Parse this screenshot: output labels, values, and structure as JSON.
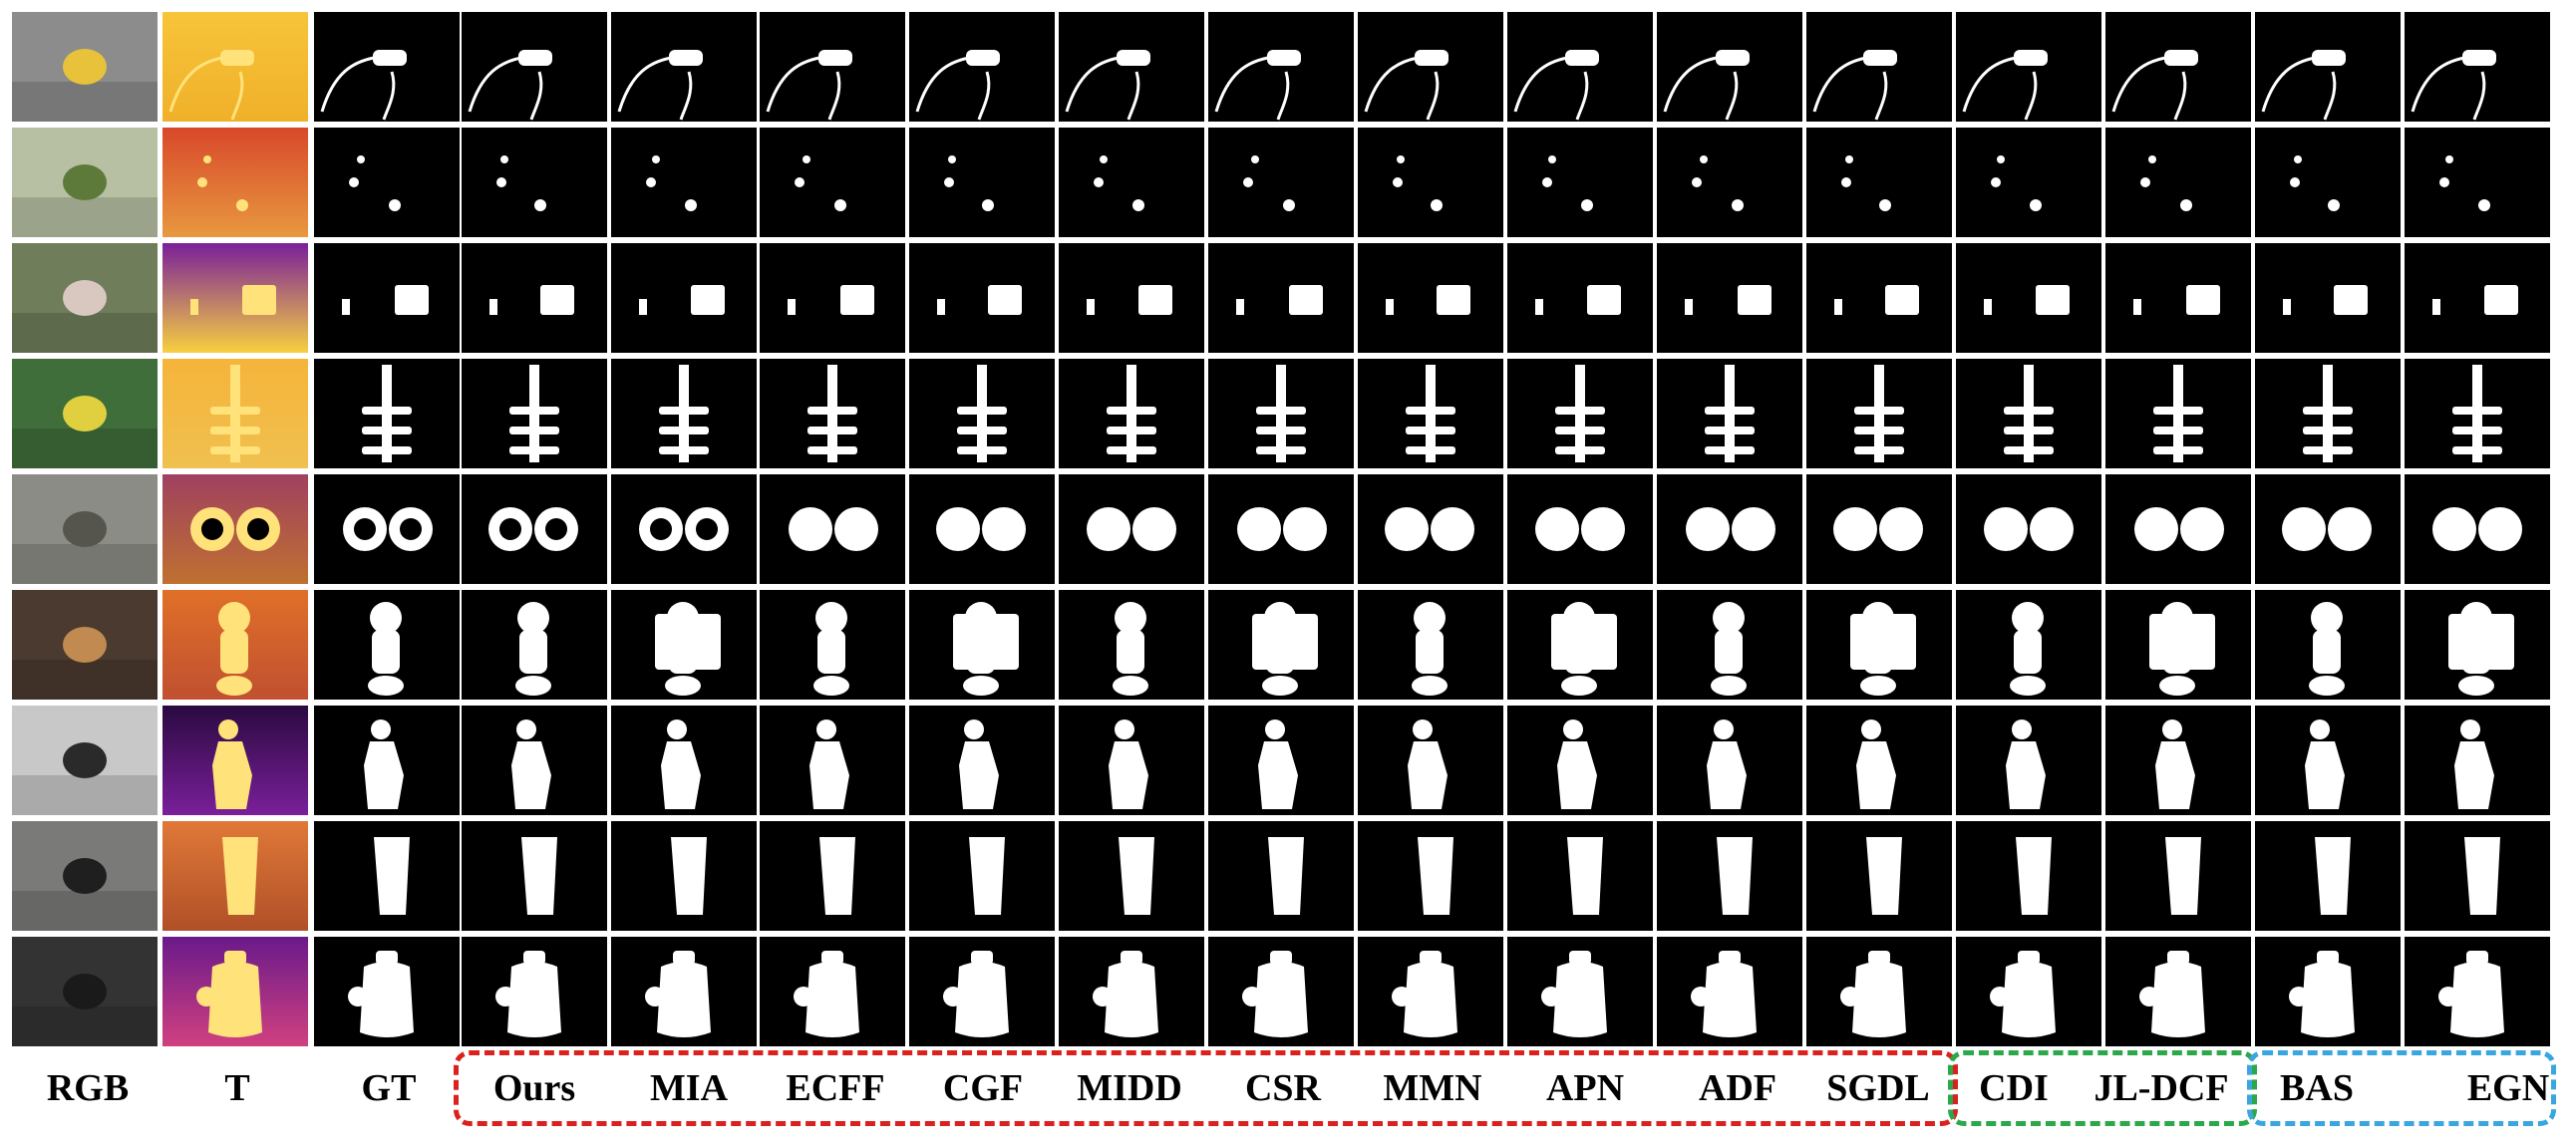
{
  "columns": [
    "RGB",
    "T",
    "GT",
    "Ours",
    "MIA",
    "ECFF",
    "CGF",
    "MIDD",
    "CSR",
    "MMN",
    "APN",
    "ADF",
    "SGDL",
    "CDI",
    "JL-DCF",
    "BAS",
    "EGN"
  ],
  "groups": [
    {
      "name": "rgbt-methods",
      "start": 3,
      "end": 12,
      "color": "#d9221f"
    },
    {
      "name": "rgbd-methods",
      "start": 13,
      "end": 14,
      "color": "#2aa84a"
    },
    {
      "name": "rgb-methods",
      "start": 15,
      "end": 16,
      "color": "#3aa6e0"
    }
  ],
  "row_count": 9,
  "colors": {
    "thermal_warm": "#f5b43a",
    "thermal_hot": "#ffd22e",
    "thermal_purple": "#7a1f9a",
    "mask_white": "#ffffff",
    "background": "#000000"
  }
}
